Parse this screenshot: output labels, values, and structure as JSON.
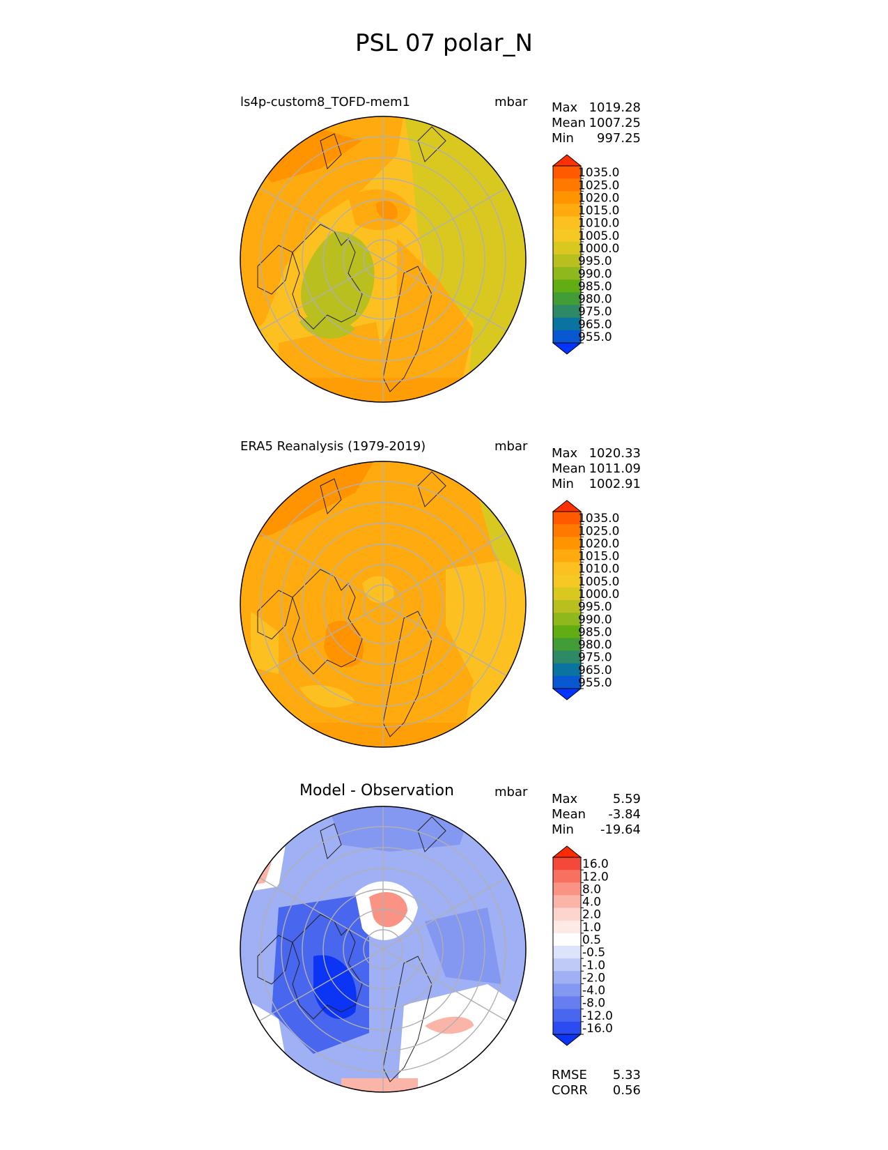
{
  "title": "PSL 07 polar_N",
  "units": "mbar",
  "panels": [
    {
      "id": "test",
      "subtitle": "ls4p-custom8_TOFD-mem1",
      "units": "mbar",
      "stats": [
        {
          "label": "Max",
          "value": "1019.28"
        },
        {
          "label": "Mean",
          "value": "1007.25"
        },
        {
          "label": "Min",
          "value": "997.25"
        }
      ]
    },
    {
      "id": "reference",
      "subtitle": "ERA5 Reanalysis (1979-2019)",
      "units": "mbar",
      "stats": [
        {
          "label": "Max",
          "value": "1020.33"
        },
        {
          "label": "Mean",
          "value": "1011.09"
        },
        {
          "label": "Min",
          "value": "1002.91"
        }
      ]
    },
    {
      "id": "diff",
      "subtitle": "Model - Observation",
      "units": "mbar",
      "stats": [
        {
          "label": "Max",
          "value": "5.59"
        },
        {
          "label": "Mean",
          "value": "-3.84"
        },
        {
          "label": "Min",
          "value": "-19.64"
        }
      ],
      "metrics": [
        {
          "label": "RMSE",
          "value": "5.33"
        },
        {
          "label": "CORR",
          "value": "0.56"
        }
      ]
    }
  ],
  "colorbars": {
    "field": {
      "labels": [
        "1035.0",
        "1025.0",
        "1020.0",
        "1015.0",
        "1010.0",
        "1005.0",
        "1000.0",
        "995.0",
        "990.0",
        "985.0",
        "980.0",
        "975.0",
        "965.0",
        "955.0"
      ],
      "colors": [
        "#ff3000",
        "#ff5a00",
        "#ff7800",
        "#ff9400",
        "#ffab10",
        "#fcc020",
        "#f5c823",
        "#d9c820",
        "#b8bf1e",
        "#8fb81c",
        "#62ad14",
        "#429d36",
        "#2e8a66",
        "#0b73a0",
        "#0858d2",
        "#0035ff"
      ]
    },
    "diff": {
      "labels": [
        "16.0",
        "12.0",
        "8.0",
        "4.0",
        "2.0",
        "1.0",
        "0.5",
        "-0.5",
        "-1.0",
        "-2.0",
        "-4.0",
        "-8.0",
        "-12.0",
        "-16.0"
      ],
      "colors": [
        "#ff2a00",
        "#f4493a",
        "#f8705f",
        "#fa9383",
        "#fbb5a8",
        "#fdd5cc",
        "#fdeae6",
        "#ffffff",
        "#dde3fb",
        "#bfcaf7",
        "#a0b0f4",
        "#8497f1",
        "#667ef0",
        "#4966ef",
        "#2b4cf1",
        "#0b34f5"
      ]
    }
  }
}
